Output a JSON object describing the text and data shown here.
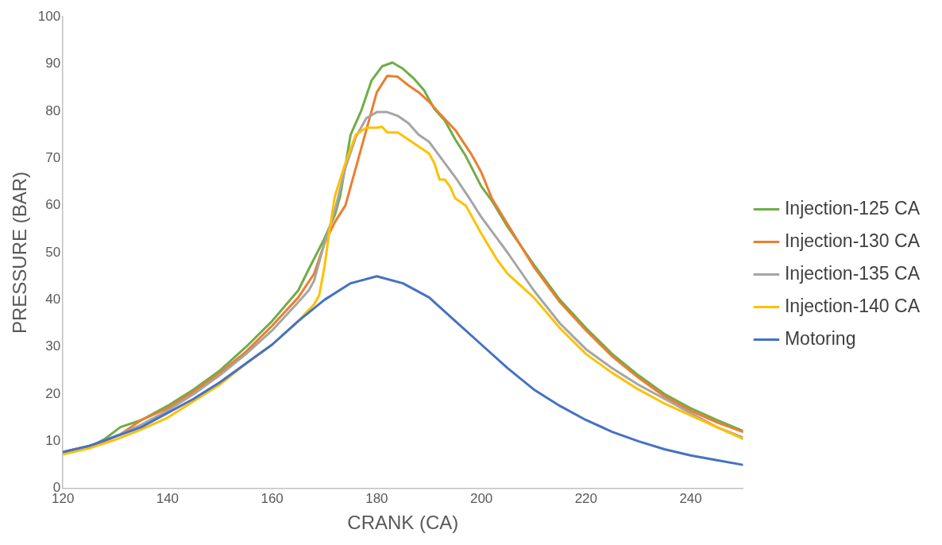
{
  "chart_data": {
    "type": "line",
    "xlabel": "CRANK (CA)",
    "ylabel": "PRESSURE (BAR)",
    "xlim": [
      120,
      250
    ],
    "xticks": [
      120,
      140,
      160,
      180,
      200,
      220,
      240
    ],
    "ylim": [
      0,
      100
    ],
    "yticks": [
      0,
      10,
      20,
      30,
      40,
      50,
      60,
      70,
      80,
      90,
      100
    ],
    "grid": false,
    "legend": "right",
    "marker": "none",
    "line_style": "solid",
    "series": [
      {
        "name": "Injection-125 CA",
        "color": "#70ad47",
        "x": [
          120,
          126,
          128,
          131,
          135,
          140,
          145,
          150,
          155,
          160,
          165,
          167,
          170,
          172,
          173,
          175,
          177,
          179,
          181,
          183,
          185,
          187,
          189,
          191,
          193,
          195,
          197,
          200,
          202,
          205,
          210,
          215,
          220,
          225,
          230,
          235,
          240,
          245,
          250
        ],
        "values": [
          7.7,
          9.3,
          10.5,
          13,
          14.5,
          17.5,
          21,
          25,
          30,
          35.5,
          42,
          46.5,
          53,
          58,
          62,
          75,
          80,
          86.5,
          89.5,
          90.3,
          89,
          87,
          84.5,
          80.5,
          78,
          74,
          70.5,
          64,
          61,
          55.5,
          47.5,
          40,
          34,
          28.5,
          24,
          20,
          17,
          14.5,
          12.2
        ]
      },
      {
        "name": "Injection-130 CA",
        "color": "#ed7d31",
        "x": [
          120,
          125,
          128,
          131,
          133,
          135,
          140,
          145,
          150,
          155,
          160,
          165,
          168,
          170,
          172,
          174,
          176,
          178,
          180,
          182,
          184,
          186,
          188,
          190,
          192,
          195,
          198,
          200,
          202,
          205,
          210,
          215,
          220,
          225,
          230,
          235,
          240,
          245,
          250
        ],
        "values": [
          7.7,
          9,
          10,
          11.5,
          13,
          14.5,
          17,
          20.5,
          24.5,
          29,
          34.5,
          40.5,
          45.5,
          52,
          56.5,
          60,
          68,
          76,
          84,
          87.5,
          87.3,
          85.5,
          84,
          82,
          79.5,
          76,
          71,
          67,
          61.5,
          56,
          47,
          39.5,
          33.5,
          28,
          23.5,
          19.5,
          16.5,
          14,
          12
        ]
      },
      {
        "name": "Injection-135 CA",
        "color": "#a5a5a5",
        "x": [
          120,
          125,
          131,
          135,
          140,
          145,
          150,
          155,
          160,
          165,
          167,
          168,
          170,
          172,
          174,
          176,
          178,
          180,
          182,
          184,
          186,
          188,
          190,
          192,
          195,
          198,
          200,
          203,
          205,
          210,
          215,
          220,
          225,
          230,
          235,
          240,
          245,
          250
        ],
        "values": [
          7.7,
          9,
          11.5,
          13.5,
          16.5,
          20,
          24,
          28.5,
          33.5,
          39.5,
          42,
          44,
          52,
          59,
          68,
          74.5,
          78.5,
          79.8,
          79.8,
          79,
          77.5,
          75,
          73.5,
          70.5,
          66,
          61,
          57.5,
          53,
          50,
          42,
          35,
          29.5,
          25.5,
          22,
          19,
          16,
          13,
          10.8
        ]
      },
      {
        "name": "Injection-140 CA",
        "color": "#ffc000",
        "x": [
          120,
          125,
          130,
          135,
          140,
          145,
          150,
          155,
          160,
          165,
          168,
          169,
          170,
          171,
          172,
          174,
          176,
          178,
          180,
          181,
          182,
          184,
          186,
          188,
          190,
          191,
          192,
          193,
          194,
          195,
          197,
          200,
          203,
          205,
          210,
          215,
          220,
          225,
          230,
          235,
          240,
          245,
          250
        ],
        "values": [
          7.2,
          8.5,
          10.3,
          12.5,
          15,
          18.5,
          22,
          26.5,
          30.5,
          35.5,
          39,
          41,
          47,
          55,
          62,
          69,
          75,
          76.5,
          76.5,
          76.7,
          75.5,
          75.5,
          74,
          72.5,
          71,
          69,
          65.5,
          65.5,
          64,
          61.5,
          60,
          54,
          48.5,
          45.5,
          40.5,
          34,
          28.5,
          24.5,
          21,
          18,
          15.5,
          13,
          10.5
        ]
      },
      {
        "name": "Motoring",
        "color": "#4472c4",
        "x": [
          120,
          125,
          130,
          135,
          140,
          145,
          150,
          155,
          160,
          165,
          170,
          175,
          180,
          185,
          190,
          195,
          200,
          205,
          210,
          215,
          220,
          225,
          230,
          235,
          240,
          245,
          250
        ],
        "values": [
          7.7,
          9,
          11,
          13,
          16,
          19,
          22.5,
          26.5,
          30.5,
          35.5,
          40,
          43.5,
          45,
          43.5,
          40.5,
          35.5,
          30.5,
          25.5,
          21,
          17.5,
          14.5,
          12,
          10,
          8.3,
          7,
          6,
          5
        ]
      }
    ]
  }
}
